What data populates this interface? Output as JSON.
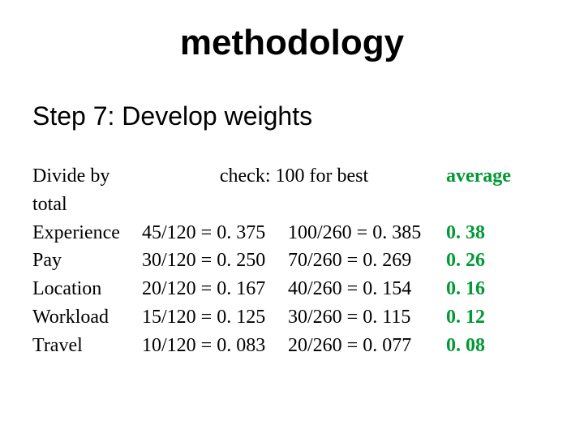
{
  "title": "methodology",
  "subtitle": "Step 7: Develop weights",
  "colors": {
    "text": "#000000",
    "accent_green": "#009933",
    "background": "#ffffff"
  },
  "typography": {
    "title_font": "Arial",
    "title_size_pt": 33,
    "title_weight": "bold",
    "subtitle_font": "Arial",
    "subtitle_size_pt": 24,
    "body_font": "Times New Roman",
    "body_size_pt": 18,
    "avg_weight": "bold"
  },
  "table": {
    "header": {
      "label": "Divide by total",
      "check": "check: 100 for best",
      "avg": "average"
    },
    "rows": [
      {
        "label": "Experience",
        "calc1": "45/120 = 0. 375",
        "calc2": "100/260 = 0. 385",
        "avg": "0. 38"
      },
      {
        "label": "Pay",
        "calc1": "30/120 = 0. 250",
        "calc2": "70/260 = 0. 269",
        "avg": "0. 26"
      },
      {
        "label": "Location",
        "calc1": "20/120 = 0. 167",
        "calc2": "40/260 = 0. 154",
        "avg": "0. 16"
      },
      {
        "label": "Workload",
        "calc1": "15/120 = 0. 125",
        "calc2": "30/260 = 0. 115",
        "avg": "0. 12"
      },
      {
        "label": "Travel",
        "calc1": "10/120 = 0. 083",
        "calc2": "20/260 = 0. 077",
        "avg": "0. 08"
      }
    ]
  }
}
